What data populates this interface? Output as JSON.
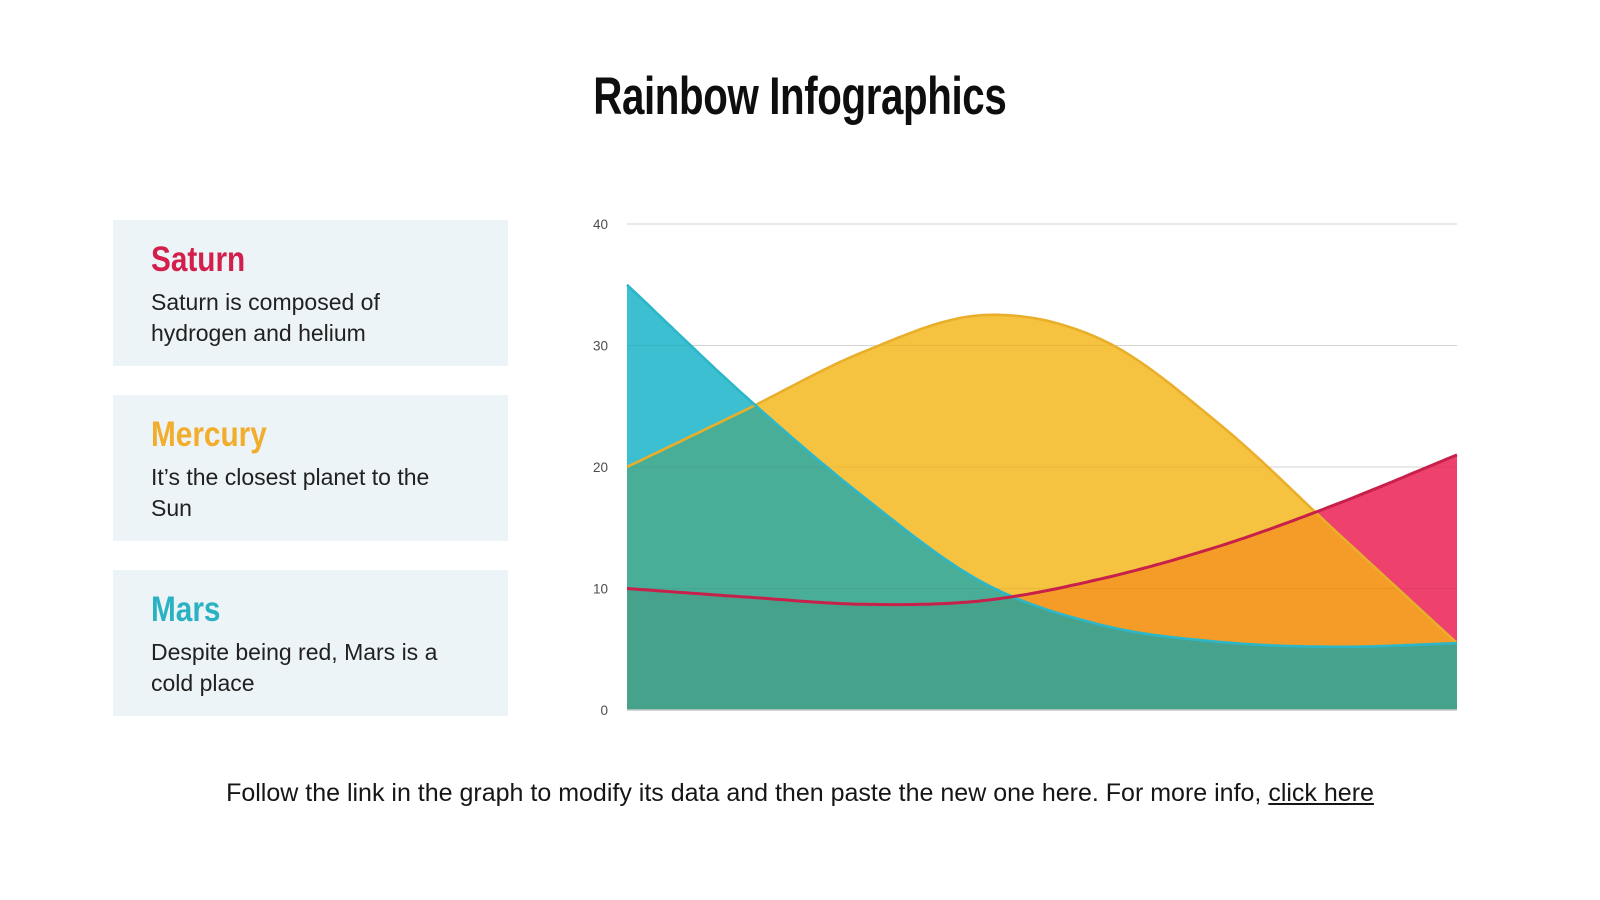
{
  "title": "Rainbow Infographics",
  "legend_cards": [
    {
      "name": "Saturn",
      "color": "#d31f4c",
      "description": "Saturn is composed of hydrogen and helium"
    },
    {
      "name": "Mercury",
      "color": "#f1ad2b",
      "description": "It’s the closest planet to the Sun"
    },
    {
      "name": "Mars",
      "color": "#2ab2c3",
      "description": "Despite being red, Mars is a cold place"
    }
  ],
  "footer": {
    "text_before_link": "Follow the link in the graph to modify its data and then paste the new one here. For more info, ",
    "link_text": "click here"
  },
  "chart_data": {
    "type": "area",
    "smooth": true,
    "x": [
      0,
      1,
      2,
      3,
      4,
      5,
      6,
      7
    ],
    "x_tick_labels": [],
    "series": [
      {
        "name": "Saturn",
        "values": [
          10,
          9.3,
          8.7,
          9,
          10.8,
          13.5,
          17,
          21
        ],
        "fill": "#ee416d",
        "stroke": "#c7204a"
      },
      {
        "name": "Mercury",
        "values": [
          20,
          24.7,
          29.5,
          32.5,
          30.5,
          23.5,
          14.5,
          5.5
        ],
        "fill": "#f6c340",
        "stroke": "#e9ae2a"
      },
      {
        "name": "Mars",
        "values": [
          35,
          25.8,
          17.5,
          10.5,
          7,
          5.6,
          5.2,
          5.5
        ],
        "fill": "#3bbfd1",
        "stroke": "#2db6c7"
      }
    ],
    "overlap_colors": {
      "mars_mercury": "#49ae97",
      "mercury_saturn": "#f49c27",
      "all_three": "#47a28b"
    },
    "ylim": [
      0,
      40
    ],
    "yticks": [
      0,
      10,
      20,
      30,
      40
    ],
    "grid": true,
    "grid_color": "#dfdfdf",
    "grid_overlay_color": "rgba(0,0,0,0.05)",
    "baseline_color": "#c9c9c9",
    "tick_label_color": "#4d4d4d",
    "legend_position": "none"
  }
}
